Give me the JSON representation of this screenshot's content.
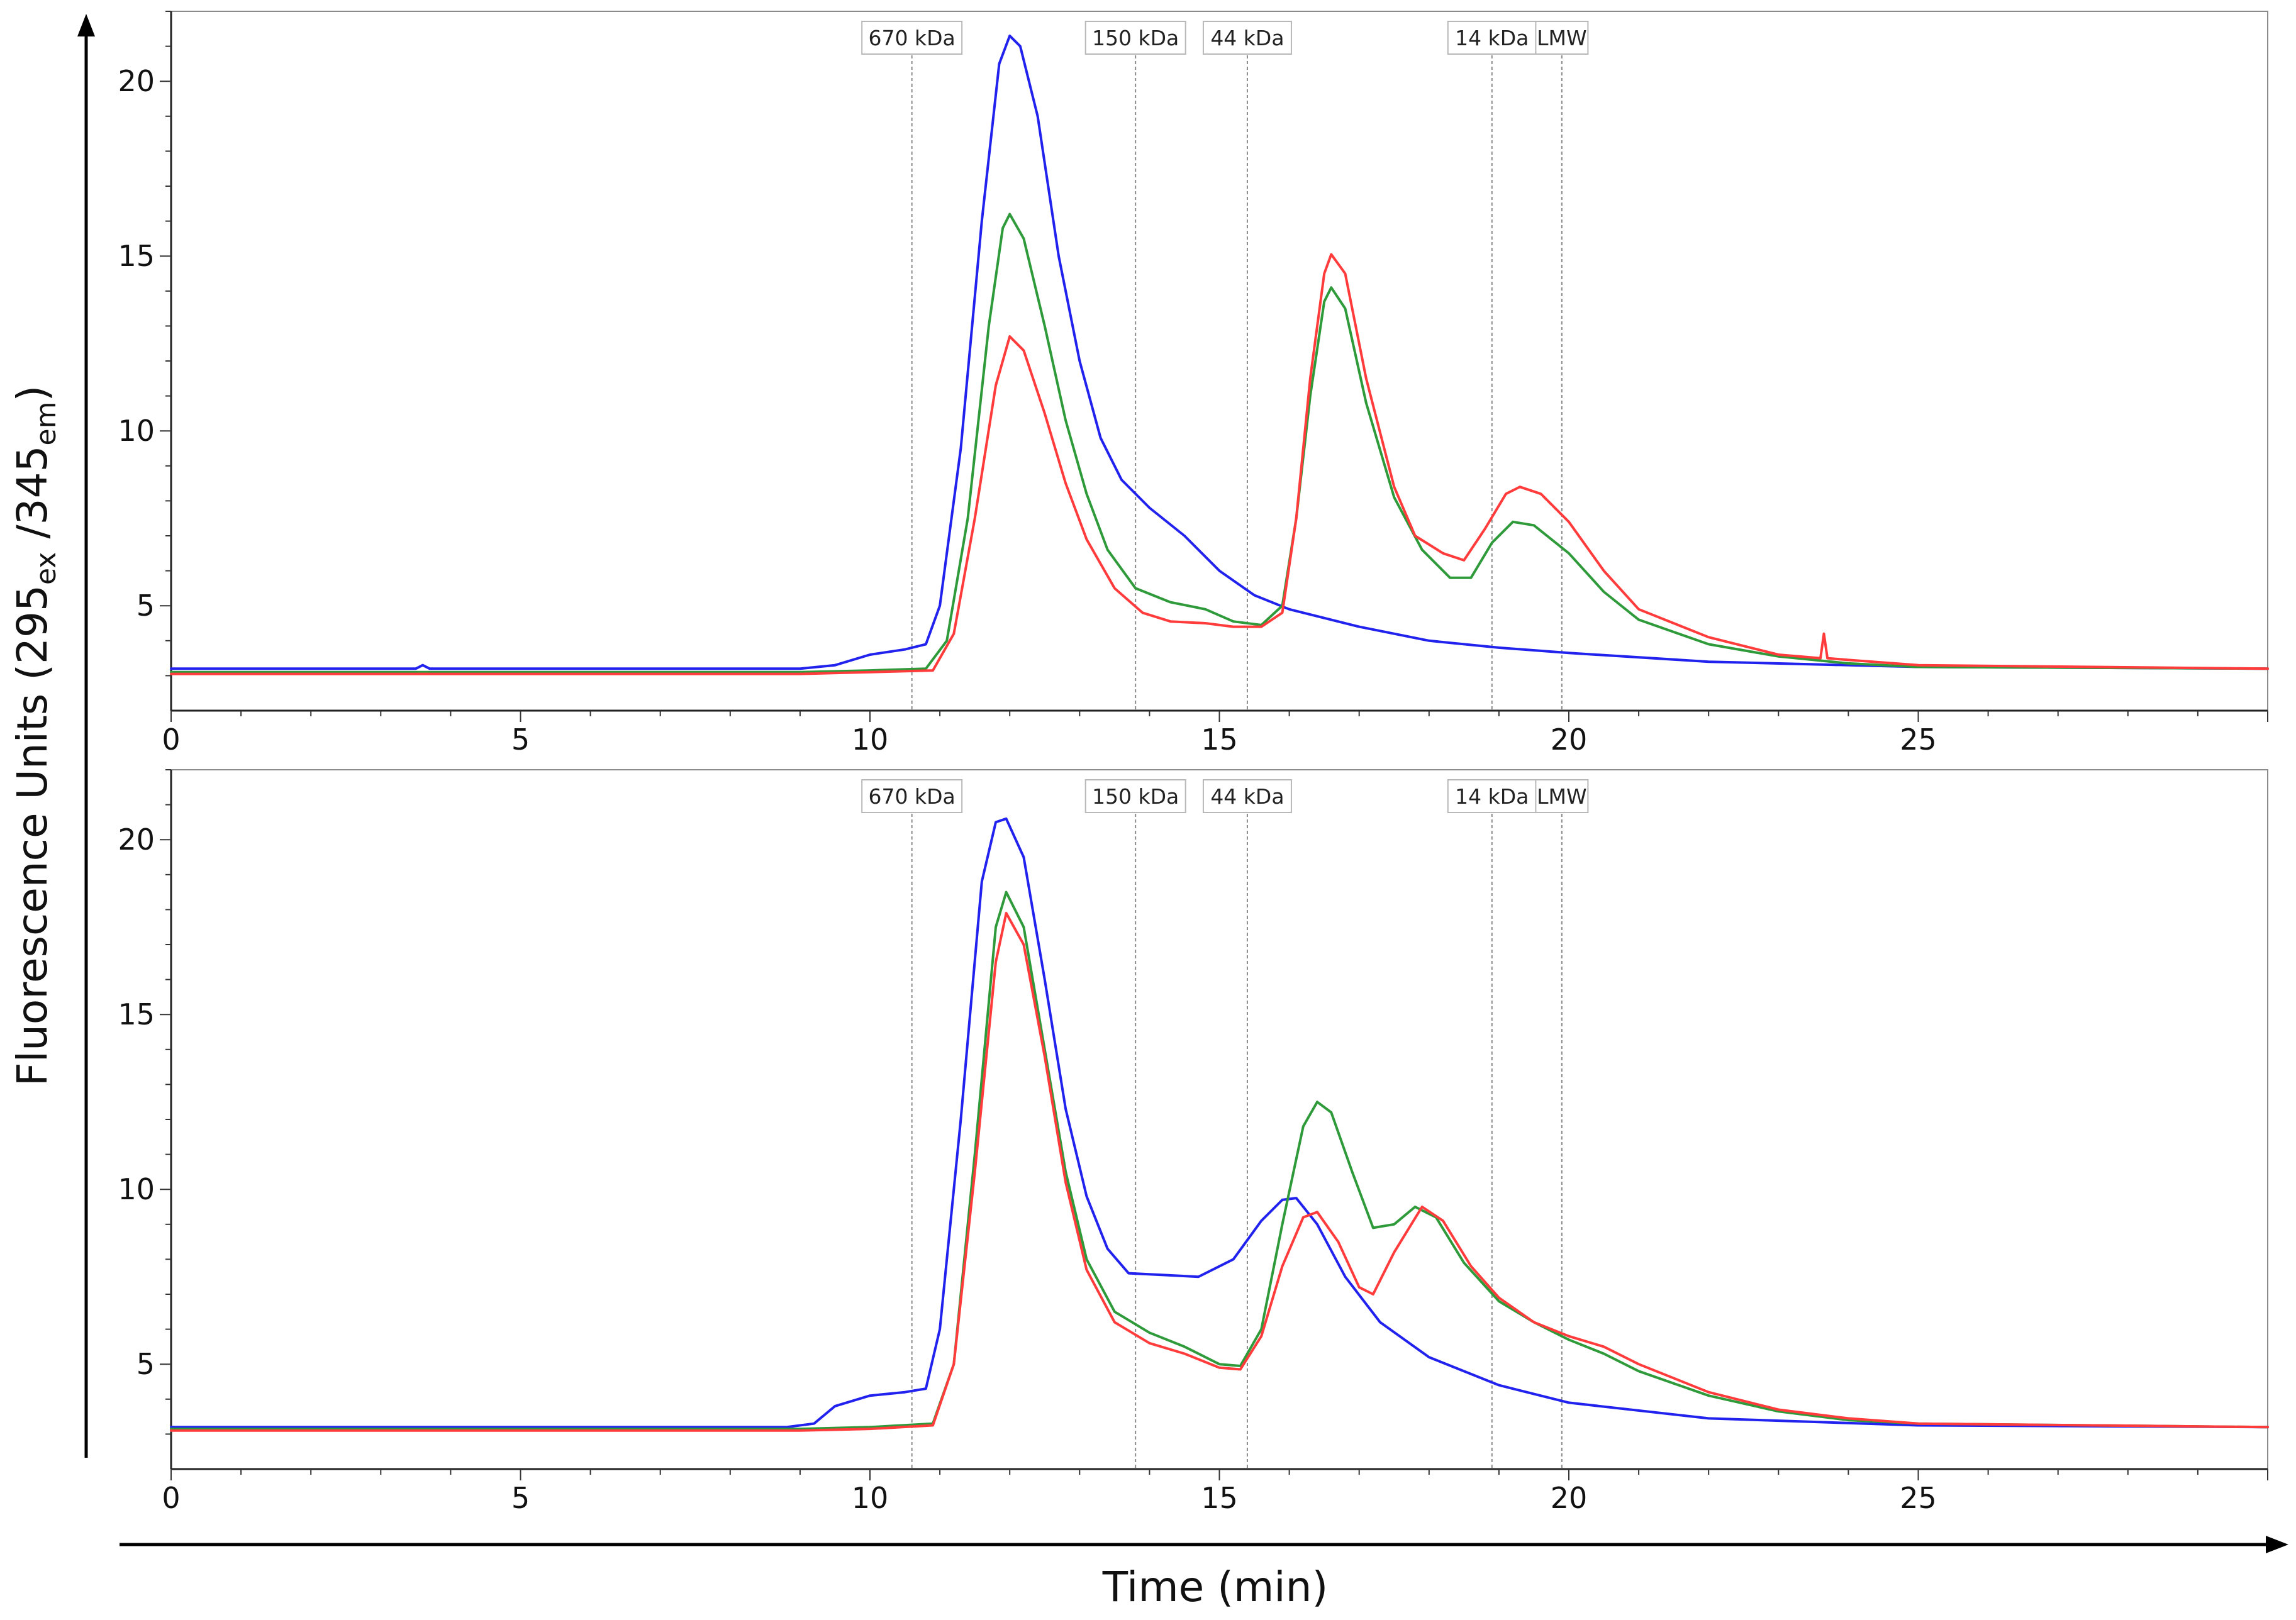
{
  "chart_data": {
    "type": "line",
    "xlabel": "Time (min)",
    "ylabel": {
      "prefix": "Fluorescence Units (",
      "ex_value": "295",
      "ex_sub": "ex",
      "sep": " /",
      "em_value": "345",
      "em_sub": "em",
      "suffix": ")"
    },
    "xlim": [
      0,
      30
    ],
    "x_ticks": [
      0,
      5,
      10,
      15,
      20,
      25
    ],
    "ylim": [
      2,
      22
    ],
    "y_ticks": [
      5,
      10,
      15,
      20
    ],
    "markers": [
      {
        "label": "670 kDa",
        "x": 10.6
      },
      {
        "label": "150 kDa",
        "x": 13.8
      },
      {
        "label": "44 kDa",
        "x": 15.4
      },
      {
        "label": "14 kDa",
        "x": 18.9
      },
      {
        "label": "LMW",
        "x": 19.9
      }
    ],
    "colors": {
      "blue": "#2222ee",
      "green": "#2e9a3a",
      "red": "#ff3b3b"
    },
    "panels": [
      {
        "name": "top",
        "series": [
          {
            "name": "blue",
            "color": "#2222ee",
            "points": [
              [
                0,
                3.2
              ],
              [
                3.5,
                3.2
              ],
              [
                3.6,
                3.3
              ],
              [
                3.7,
                3.2
              ],
              [
                9,
                3.2
              ],
              [
                9.5,
                3.3
              ],
              [
                10,
                3.6
              ],
              [
                10.5,
                3.75
              ],
              [
                10.8,
                3.9
              ],
              [
                11,
                5
              ],
              [
                11.3,
                9.5
              ],
              [
                11.6,
                16
              ],
              [
                11.85,
                20.5
              ],
              [
                12,
                21.3
              ],
              [
                12.15,
                21
              ],
              [
                12.4,
                19
              ],
              [
                12.7,
                15
              ],
              [
                13,
                12
              ],
              [
                13.3,
                9.8
              ],
              [
                13.6,
                8.6
              ],
              [
                14,
                7.8
              ],
              [
                14.5,
                7
              ],
              [
                15,
                6
              ],
              [
                15.5,
                5.3
              ],
              [
                16,
                4.9
              ],
              [
                17,
                4.4
              ],
              [
                18,
                4
              ],
              [
                19,
                3.8
              ],
              [
                20,
                3.65
              ],
              [
                22,
                3.4
              ],
              [
                25,
                3.25
              ],
              [
                30,
                3.2
              ]
            ]
          },
          {
            "name": "green",
            "color": "#2e9a3a",
            "points": [
              [
                0,
                3.1
              ],
              [
                9,
                3.1
              ],
              [
                10,
                3.15
              ],
              [
                10.8,
                3.2
              ],
              [
                11.1,
                4
              ],
              [
                11.4,
                7.5
              ],
              [
                11.7,
                13
              ],
              [
                11.9,
                15.8
              ],
              [
                12,
                16.2
              ],
              [
                12.2,
                15.5
              ],
              [
                12.5,
                13
              ],
              [
                12.8,
                10.3
              ],
              [
                13.1,
                8.2
              ],
              [
                13.4,
                6.6
              ],
              [
                13.8,
                5.5
              ],
              [
                14.3,
                5.1
              ],
              [
                14.8,
                4.9
              ],
              [
                15.2,
                4.55
              ],
              [
                15.6,
                4.45
              ],
              [
                15.9,
                5
              ],
              [
                16.1,
                7.5
              ],
              [
                16.3,
                11
              ],
              [
                16.5,
                13.7
              ],
              [
                16.6,
                14.1
              ],
              [
                16.8,
                13.5
              ],
              [
                17.1,
                10.8
              ],
              [
                17.5,
                8.1
              ],
              [
                17.9,
                6.6
              ],
              [
                18.3,
                5.8
              ],
              [
                18.6,
                5.8
              ],
              [
                18.9,
                6.8
              ],
              [
                19.2,
                7.4
              ],
              [
                19.5,
                7.3
              ],
              [
                20,
                6.5
              ],
              [
                20.5,
                5.4
              ],
              [
                21,
                4.6
              ],
              [
                22,
                3.9
              ],
              [
                23,
                3.55
              ],
              [
                24,
                3.35
              ],
              [
                25,
                3.25
              ],
              [
                30,
                3.2
              ]
            ]
          },
          {
            "name": "red",
            "color": "#ff3b3b",
            "points": [
              [
                0,
                3.05
              ],
              [
                9,
                3.05
              ],
              [
                10,
                3.1
              ],
              [
                10.9,
                3.15
              ],
              [
                11.2,
                4.2
              ],
              [
                11.5,
                7.5
              ],
              [
                11.8,
                11.3
              ],
              [
                12,
                12.7
              ],
              [
                12.2,
                12.3
              ],
              [
                12.5,
                10.5
              ],
              [
                12.8,
                8.5
              ],
              [
                13.1,
                6.9
              ],
              [
                13.5,
                5.5
              ],
              [
                13.9,
                4.8
              ],
              [
                14.3,
                4.55
              ],
              [
                14.8,
                4.5
              ],
              [
                15.2,
                4.4
              ],
              [
                15.6,
                4.4
              ],
              [
                15.9,
                4.8
              ],
              [
                16.1,
                7.5
              ],
              [
                16.3,
                11.5
              ],
              [
                16.5,
                14.5
              ],
              [
                16.6,
                15.05
              ],
              [
                16.8,
                14.5
              ],
              [
                17.1,
                11.5
              ],
              [
                17.5,
                8.4
              ],
              [
                17.8,
                7
              ],
              [
                18.2,
                6.5
              ],
              [
                18.5,
                6.3
              ],
              [
                18.8,
                7.2
              ],
              [
                19.1,
                8.2
              ],
              [
                19.3,
                8.4
              ],
              [
                19.6,
                8.2
              ],
              [
                20,
                7.4
              ],
              [
                20.5,
                6
              ],
              [
                21,
                4.9
              ],
              [
                22,
                4.1
              ],
              [
                23,
                3.6
              ],
              [
                23.6,
                3.5
              ],
              [
                23.65,
                4.2
              ],
              [
                23.7,
                3.5
              ],
              [
                24,
                3.45
              ],
              [
                25,
                3.3
              ],
              [
                30,
                3.2
              ]
            ]
          }
        ]
      },
      {
        "name": "bottom",
        "series": [
          {
            "name": "blue",
            "color": "#2222ee",
            "points": [
              [
                0,
                3.2
              ],
              [
                8.8,
                3.2
              ],
              [
                9.2,
                3.3
              ],
              [
                9.5,
                3.8
              ],
              [
                10,
                4.1
              ],
              [
                10.5,
                4.2
              ],
              [
                10.8,
                4.3
              ],
              [
                11,
                6
              ],
              [
                11.3,
                12
              ],
              [
                11.6,
                18.8
              ],
              [
                11.8,
                20.5
              ],
              [
                11.95,
                20.6
              ],
              [
                12.2,
                19.5
              ],
              [
                12.5,
                16
              ],
              [
                12.8,
                12.3
              ],
              [
                13.1,
                9.8
              ],
              [
                13.4,
                8.3
              ],
              [
                13.7,
                7.6
              ],
              [
                14.2,
                7.55
              ],
              [
                14.7,
                7.5
              ],
              [
                15.2,
                8
              ],
              [
                15.6,
                9.1
              ],
              [
                15.9,
                9.7
              ],
              [
                16.1,
                9.75
              ],
              [
                16.4,
                9
              ],
              [
                16.8,
                7.5
              ],
              [
                17.3,
                6.2
              ],
              [
                18,
                5.2
              ],
              [
                19,
                4.4
              ],
              [
                20,
                3.9
              ],
              [
                22,
                3.45
              ],
              [
                25,
                3.25
              ],
              [
                30,
                3.2
              ]
            ]
          },
          {
            "name": "green",
            "color": "#2e9a3a",
            "points": [
              [
                0,
                3.15
              ],
              [
                9,
                3.15
              ],
              [
                10,
                3.2
              ],
              [
                10.9,
                3.3
              ],
              [
                11.2,
                5
              ],
              [
                11.5,
                11
              ],
              [
                11.8,
                17.5
              ],
              [
                11.95,
                18.5
              ],
              [
                12.2,
                17.5
              ],
              [
                12.5,
                14
              ],
              [
                12.8,
                10.5
              ],
              [
                13.1,
                8
              ],
              [
                13.5,
                6.5
              ],
              [
                14,
                5.9
              ],
              [
                14.5,
                5.5
              ],
              [
                15,
                5
              ],
              [
                15.3,
                4.95
              ],
              [
                15.6,
                6
              ],
              [
                15.9,
                9
              ],
              [
                16.2,
                11.8
              ],
              [
                16.4,
                12.5
              ],
              [
                16.6,
                12.2
              ],
              [
                16.9,
                10.5
              ],
              [
                17.2,
                8.9
              ],
              [
                17.5,
                9
              ],
              [
                17.8,
                9.5
              ],
              [
                18.1,
                9.2
              ],
              [
                18.5,
                7.9
              ],
              [
                19,
                6.8
              ],
              [
                19.5,
                6.2
              ],
              [
                20,
                5.7
              ],
              [
                20.5,
                5.3
              ],
              [
                21,
                4.8
              ],
              [
                22,
                4.1
              ],
              [
                23,
                3.65
              ],
              [
                24,
                3.4
              ],
              [
                25,
                3.3
              ],
              [
                30,
                3.2
              ]
            ]
          },
          {
            "name": "red",
            "color": "#ff3b3b",
            "points": [
              [
                0,
                3.1
              ],
              [
                9,
                3.1
              ],
              [
                10,
                3.15
              ],
              [
                10.9,
                3.25
              ],
              [
                11.2,
                5
              ],
              [
                11.5,
                10.5
              ],
              [
                11.8,
                16.5
              ],
              [
                11.95,
                17.9
              ],
              [
                12.2,
                17
              ],
              [
                12.5,
                13.8
              ],
              [
                12.8,
                10.2
              ],
              [
                13.1,
                7.7
              ],
              [
                13.5,
                6.2
              ],
              [
                14,
                5.6
              ],
              [
                14.5,
                5.3
              ],
              [
                15,
                4.9
              ],
              [
                15.3,
                4.85
              ],
              [
                15.6,
                5.8
              ],
              [
                15.9,
                7.8
              ],
              [
                16.2,
                9.2
              ],
              [
                16.4,
                9.35
              ],
              [
                16.7,
                8.5
              ],
              [
                17,
                7.2
              ],
              [
                17.2,
                7
              ],
              [
                17.5,
                8.2
              ],
              [
                17.9,
                9.5
              ],
              [
                18.2,
                9.1
              ],
              [
                18.6,
                7.8
              ],
              [
                19,
                6.9
              ],
              [
                19.5,
                6.2
              ],
              [
                20,
                5.8
              ],
              [
                20.5,
                5.5
              ],
              [
                21,
                5
              ],
              [
                22,
                4.2
              ],
              [
                23,
                3.7
              ],
              [
                24,
                3.45
              ],
              [
                25,
                3.3
              ],
              [
                30,
                3.2
              ]
            ]
          }
        ]
      }
    ]
  }
}
